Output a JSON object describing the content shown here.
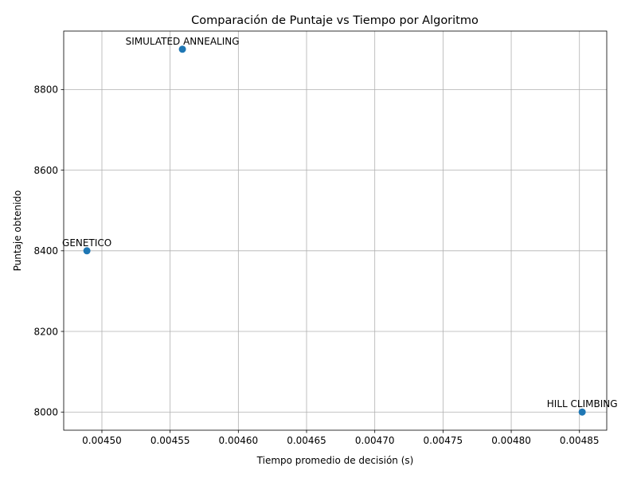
{
  "chart_data": {
    "type": "scatter",
    "title": "Comparación de Puntaje vs Tiempo por Algoritmo",
    "xlabel": "Tiempo promedio de decisión (s)",
    "ylabel": "Puntaje obtenido",
    "xlim": [
      0.004472,
      0.00487
    ],
    "ylim": [
      7955,
      8945
    ],
    "xticks": [
      {
        "value": 0.0045,
        "label": "0.00450"
      },
      {
        "value": 0.00455,
        "label": "0.00455"
      },
      {
        "value": 0.0046,
        "label": "0.00460"
      },
      {
        "value": 0.00465,
        "label": "0.00465"
      },
      {
        "value": 0.0047,
        "label": "0.00470"
      },
      {
        "value": 0.00475,
        "label": "0.00475"
      },
      {
        "value": 0.0048,
        "label": "0.00480"
      },
      {
        "value": 0.00485,
        "label": "0.00485"
      }
    ],
    "yticks": [
      {
        "value": 8000,
        "label": "8000"
      },
      {
        "value": 8200,
        "label": "8200"
      },
      {
        "value": 8400,
        "label": "8400"
      },
      {
        "value": 8600,
        "label": "8600"
      },
      {
        "value": 8800,
        "label": "8800"
      }
    ],
    "grid": true,
    "color": "#1f77b4",
    "points": [
      {
        "label": "SIMULATED ANNEALING",
        "x": 0.004559,
        "y": 8900
      },
      {
        "label": "GENETICO",
        "x": 0.004489,
        "y": 8400
      },
      {
        "label": "HILL CLIMBING",
        "x": 0.004852,
        "y": 8000
      }
    ]
  }
}
